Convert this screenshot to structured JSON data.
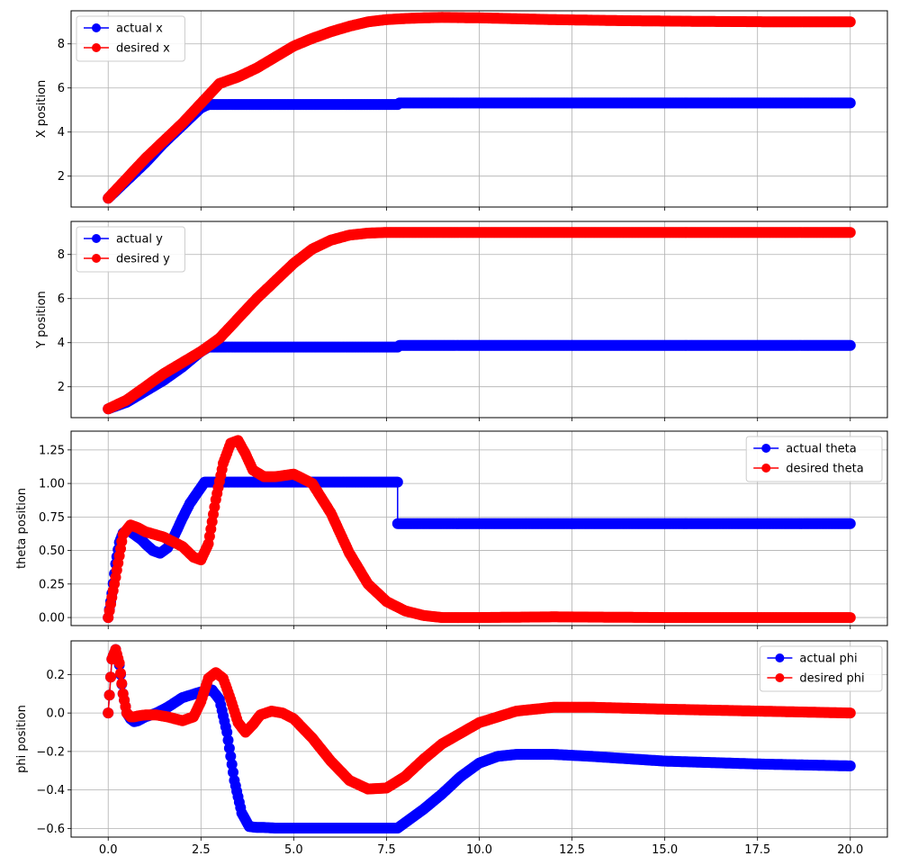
{
  "colors": {
    "actual": "#0000ff",
    "desired": "#ff0000",
    "grid": "#b0b0b0",
    "frame": "#000000"
  },
  "chart_data": [
    {
      "type": "line",
      "ylabel": "X position",
      "xlim": [
        -1.0,
        21.0
      ],
      "ylim": [
        0.6,
        9.5
      ],
      "xticks": [
        0.0,
        2.5,
        5.0,
        7.5,
        10.0,
        12.5,
        15.0,
        17.5,
        20.0
      ],
      "xtick_labels": [],
      "yticks": [
        2,
        4,
        6,
        8
      ],
      "ytick_labels": [
        "2",
        "4",
        "6",
        "8"
      ],
      "grid": true,
      "legend": "upper left",
      "series": [
        {
          "name": "actual x",
          "color": "#0000ff",
          "x": [
            0.0,
            0.5,
            1.0,
            1.5,
            2.0,
            2.5,
            2.7,
            5.0,
            7.8,
            7.85,
            10.0,
            15.0,
            20.0
          ],
          "y": [
            1.0,
            1.8,
            2.6,
            3.5,
            4.3,
            5.1,
            5.25,
            5.25,
            5.25,
            5.32,
            5.32,
            5.32,
            5.32
          ]
        },
        {
          "name": "desired x",
          "color": "#ff0000",
          "x": [
            0.0,
            0.5,
            1.0,
            1.5,
            2.0,
            2.5,
            3.0,
            3.5,
            4.0,
            4.5,
            5.0,
            5.5,
            6.0,
            6.5,
            7.0,
            7.5,
            8.0,
            8.5,
            9.0,
            10.0,
            12.0,
            14.0,
            16.0,
            18.0,
            20.0
          ],
          "y": [
            1.0,
            1.9,
            2.8,
            3.6,
            4.4,
            5.3,
            6.2,
            6.5,
            6.9,
            7.4,
            7.9,
            8.25,
            8.55,
            8.8,
            9.0,
            9.1,
            9.15,
            9.18,
            9.2,
            9.18,
            9.1,
            9.05,
            9.02,
            9.0,
            9.0
          ]
        }
      ]
    },
    {
      "type": "line",
      "ylabel": "Y position",
      "xlim": [
        -1.0,
        21.0
      ],
      "ylim": [
        0.6,
        9.5
      ],
      "xticks": [
        0.0,
        2.5,
        5.0,
        7.5,
        10.0,
        12.5,
        15.0,
        17.5,
        20.0
      ],
      "xtick_labels": [],
      "yticks": [
        2,
        4,
        6,
        8
      ],
      "ytick_labels": [
        "2",
        "4",
        "6",
        "8"
      ],
      "grid": true,
      "legend": "upper left",
      "series": [
        {
          "name": "actual y",
          "color": "#0000ff",
          "x": [
            0.0,
            0.5,
            1.0,
            1.5,
            2.0,
            2.5,
            2.7,
            5.0,
            7.8,
            7.85,
            10.0,
            15.0,
            20.0
          ],
          "y": [
            1.0,
            1.3,
            1.8,
            2.3,
            2.9,
            3.6,
            3.8,
            3.8,
            3.8,
            3.88,
            3.88,
            3.88,
            3.88
          ]
        },
        {
          "name": "desired y",
          "color": "#ff0000",
          "x": [
            0.0,
            0.5,
            1.0,
            1.5,
            2.0,
            2.5,
            3.0,
            3.5,
            4.0,
            4.5,
            5.0,
            5.5,
            6.0,
            6.5,
            7.0,
            7.5,
            8.0,
            10.0,
            15.0,
            20.0
          ],
          "y": [
            1.0,
            1.4,
            2.0,
            2.6,
            3.1,
            3.6,
            4.2,
            5.1,
            6.0,
            6.8,
            7.6,
            8.25,
            8.65,
            8.88,
            8.97,
            9.0,
            9.0,
            9.0,
            9.0,
            9.0
          ]
        }
      ]
    },
    {
      "type": "line",
      "ylabel": "theta position",
      "xlim": [
        -1.0,
        21.0
      ],
      "ylim": [
        -0.06,
        1.39
      ],
      "xticks": [
        0.0,
        2.5,
        5.0,
        7.5,
        10.0,
        12.5,
        15.0,
        17.5,
        20.0
      ],
      "xtick_labels": [],
      "yticks": [
        0.0,
        0.25,
        0.5,
        0.75,
        1.0,
        1.25
      ],
      "ytick_labels": [
        "0.00",
        "0.25",
        "0.50",
        "0.75",
        "1.00",
        "1.25"
      ],
      "grid": true,
      "legend": "upper right",
      "series": [
        {
          "name": "actual theta",
          "color": "#0000ff",
          "x": [
            0.0,
            0.1,
            0.2,
            0.3,
            0.4,
            0.5,
            0.6,
            0.7,
            0.8,
            0.9,
            1.0,
            1.2,
            1.4,
            1.6,
            1.8,
            2.0,
            2.2,
            2.4,
            2.5,
            2.6,
            5.0,
            7.8,
            7.8,
            10.0,
            15.0,
            20.0
          ],
          "y": [
            0.0,
            0.18,
            0.4,
            0.56,
            0.63,
            0.65,
            0.64,
            0.62,
            0.6,
            0.58,
            0.55,
            0.5,
            0.48,
            0.52,
            0.62,
            0.74,
            0.85,
            0.93,
            0.97,
            1.01,
            1.01,
            1.01,
            0.7,
            0.7,
            0.7,
            0.7
          ]
        },
        {
          "name": "desired theta",
          "color": "#ff0000",
          "x": [
            0.0,
            0.2,
            0.4,
            0.6,
            0.8,
            1.0,
            1.5,
            2.0,
            2.3,
            2.5,
            2.7,
            2.9,
            3.1,
            3.3,
            3.5,
            3.7,
            3.9,
            4.2,
            4.5,
            5.0,
            5.5,
            6.0,
            6.5,
            7.0,
            7.5,
            8.0,
            8.5,
            9.0,
            10.0,
            12.0,
            15.0,
            20.0
          ],
          "y": [
            0.0,
            0.3,
            0.62,
            0.69,
            0.67,
            0.64,
            0.6,
            0.53,
            0.45,
            0.43,
            0.55,
            0.88,
            1.15,
            1.3,
            1.32,
            1.22,
            1.1,
            1.05,
            1.05,
            1.07,
            1.0,
            0.78,
            0.48,
            0.25,
            0.12,
            0.05,
            0.015,
            0.0,
            0.0,
            0.005,
            0.0,
            0.0
          ]
        }
      ]
    },
    {
      "type": "line",
      "ylabel": "phi position",
      "xlim": [
        -1.0,
        21.0
      ],
      "ylim": [
        -0.645,
        0.375
      ],
      "xticks": [
        0.0,
        2.5,
        5.0,
        7.5,
        10.0,
        12.5,
        15.0,
        17.5,
        20.0
      ],
      "xtick_labels": [
        "0.0",
        "2.5",
        "5.0",
        "7.5",
        "10.0",
        "12.5",
        "15.0",
        "17.5",
        "20.0"
      ],
      "yticks": [
        -0.6,
        -0.4,
        -0.2,
        0.0,
        0.2
      ],
      "ytick_labels": [
        "−0.6",
        "−0.4",
        "−0.2",
        "0.0",
        "0.2"
      ],
      "grid": true,
      "legend": "upper right",
      "series": [
        {
          "name": "actual phi",
          "color": "#0000ff",
          "x": [
            0.0,
            0.1,
            0.2,
            0.3,
            0.4,
            0.5,
            0.6,
            0.7,
            0.8,
            1.0,
            1.3,
            1.6,
            2.0,
            2.5,
            2.8,
            3.0,
            3.2,
            3.4,
            3.6,
            3.8,
            4.0,
            4.2,
            4.5,
            5.0,
            6.0,
            7.0,
            7.8,
            8.5,
            9.0,
            9.5,
            10.0,
            10.5,
            11.0,
            12.0,
            13.0,
            15.0,
            17.5,
            20.0
          ],
          "y": [
            0.0,
            0.28,
            0.33,
            0.25,
            0.1,
            0.0,
            -0.03,
            -0.045,
            -0.04,
            -0.02,
            0.0,
            0.03,
            0.08,
            0.11,
            0.12,
            0.07,
            -0.1,
            -0.35,
            -0.52,
            -0.59,
            -0.595,
            -0.595,
            -0.598,
            -0.598,
            -0.598,
            -0.598,
            -0.598,
            -0.5,
            -0.42,
            -0.33,
            -0.26,
            -0.225,
            -0.215,
            -0.215,
            -0.225,
            -0.25,
            -0.265,
            -0.275
          ]
        },
        {
          "name": "desired phi",
          "color": "#ff0000",
          "x": [
            0.0,
            0.1,
            0.2,
            0.3,
            0.4,
            0.5,
            0.6,
            0.7,
            0.8,
            1.0,
            1.3,
            1.6,
            2.0,
            2.3,
            2.5,
            2.7,
            2.9,
            3.1,
            3.3,
            3.5,
            3.7,
            3.9,
            4.1,
            4.4,
            4.7,
            5.0,
            5.5,
            6.0,
            6.5,
            7.0,
            7.5,
            8.0,
            8.5,
            9.0,
            10.0,
            11.0,
            12.0,
            13.0,
            15.0,
            17.5,
            20.0
          ],
          "y": [
            0.0,
            0.28,
            0.33,
            0.26,
            0.1,
            0.0,
            -0.02,
            -0.02,
            -0.015,
            -0.01,
            -0.01,
            -0.02,
            -0.04,
            -0.02,
            0.06,
            0.18,
            0.21,
            0.18,
            0.07,
            -0.05,
            -0.1,
            -0.06,
            -0.01,
            0.01,
            0.0,
            -0.03,
            -0.13,
            -0.25,
            -0.35,
            -0.395,
            -0.39,
            -0.33,
            -0.24,
            -0.16,
            -0.05,
            0.01,
            0.03,
            0.03,
            0.02,
            0.01,
            0.0
          ]
        }
      ]
    }
  ]
}
